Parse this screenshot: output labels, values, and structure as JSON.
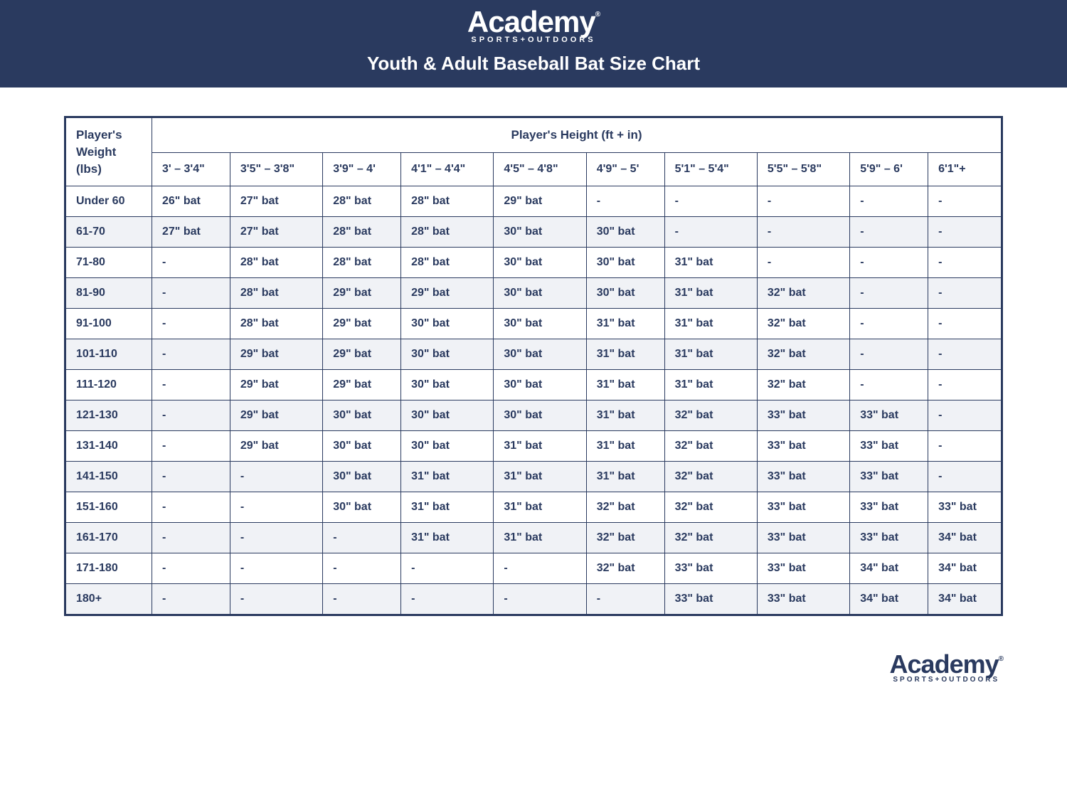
{
  "brand": {
    "name": "Academy",
    "tagline": "SPORTS+OUTDOORS",
    "reg": "®"
  },
  "title": "Youth & Adult Baseball Bat Size Chart",
  "table": {
    "corner_label_l1": "Player's",
    "corner_label_l2": "Weight",
    "corner_label_l3": "(lbs)",
    "height_header": "Player's Height (ft + in)",
    "columns": [
      "3' – 3'4\"",
      "3'5\" – 3'8\"",
      "3'9\" – 4'",
      "4'1\" – 4'4\"",
      "4'5\" – 4'8\"",
      "4'9\" – 5'",
      "5'1\" – 5'4\"",
      "5'5\" – 5'8\"",
      "5'9\" – 6'",
      "6'1\"+"
    ],
    "rows": [
      {
        "label": "Under 60",
        "cells": [
          "26\" bat",
          "27\" bat",
          "28\" bat",
          "28\" bat",
          "29\" bat",
          "-",
          "-",
          "-",
          "-",
          "-"
        ]
      },
      {
        "label": "61-70",
        "cells": [
          "27\" bat",
          "27\" bat",
          "28\" bat",
          "28\" bat",
          "30\" bat",
          "30\" bat",
          "-",
          "-",
          "-",
          "-"
        ]
      },
      {
        "label": "71-80",
        "cells": [
          "-",
          "28\" bat",
          "28\" bat",
          "28\" bat",
          "30\" bat",
          "30\" bat",
          "31\" bat",
          "-",
          "-",
          "-"
        ]
      },
      {
        "label": "81-90",
        "cells": [
          "-",
          "28\" bat",
          "29\" bat",
          "29\" bat",
          "30\" bat",
          "30\" bat",
          "31\" bat",
          "32\" bat",
          "-",
          "-"
        ]
      },
      {
        "label": "91-100",
        "cells": [
          "-",
          "28\" bat",
          "29\" bat",
          "30\" bat",
          "30\" bat",
          "31\" bat",
          "31\" bat",
          "32\" bat",
          "-",
          "-"
        ]
      },
      {
        "label": "101-110",
        "cells": [
          "-",
          "29\" bat",
          "29\" bat",
          "30\" bat",
          "30\" bat",
          "31\" bat",
          "31\" bat",
          "32\" bat",
          "-",
          "-"
        ]
      },
      {
        "label": "111-120",
        "cells": [
          "-",
          "29\" bat",
          "29\" bat",
          "30\" bat",
          "30\" bat",
          "31\" bat",
          "31\" bat",
          "32\" bat",
          "-",
          "-"
        ]
      },
      {
        "label": "121-130",
        "cells": [
          "-",
          "29\" bat",
          "30\" bat",
          "30\" bat",
          "30\" bat",
          "31\" bat",
          "32\" bat",
          "33\" bat",
          "33\" bat",
          "-"
        ]
      },
      {
        "label": "131-140",
        "cells": [
          "-",
          "29\" bat",
          "30\" bat",
          "30\" bat",
          "31\" bat",
          "31\" bat",
          "32\" bat",
          "33\" bat",
          "33\" bat",
          "-"
        ]
      },
      {
        "label": "141-150",
        "cells": [
          "-",
          "-",
          "30\" bat",
          "31\" bat",
          "31\" bat",
          "31\" bat",
          "32\" bat",
          "33\" bat",
          "33\" bat",
          "-"
        ]
      },
      {
        "label": "151-160",
        "cells": [
          "-",
          "-",
          "30\" bat",
          "31\" bat",
          "31\" bat",
          "32\" bat",
          "32\" bat",
          "33\" bat",
          "33\" bat",
          "33\" bat"
        ]
      },
      {
        "label": "161-170",
        "cells": [
          "-",
          "-",
          "-",
          "31\" bat",
          "31\" bat",
          "32\" bat",
          "32\" bat",
          "33\" bat",
          "33\" bat",
          "34\" bat"
        ]
      },
      {
        "label": "171-180",
        "cells": [
          "-",
          "-",
          "-",
          "-",
          "-",
          "32\" bat",
          "33\" bat",
          "33\" bat",
          "34\" bat",
          "34\" bat"
        ]
      },
      {
        "label": "180+",
        "cells": [
          "-",
          "-",
          "-",
          "-",
          "-",
          "-",
          "33\" bat",
          "33\" bat",
          "34\" bat",
          "34\" bat"
        ]
      }
    ]
  },
  "colors": {
    "brand_navy": "#2a3a5f",
    "row_stripe": "#f0f2f6",
    "background": "#ffffff"
  }
}
